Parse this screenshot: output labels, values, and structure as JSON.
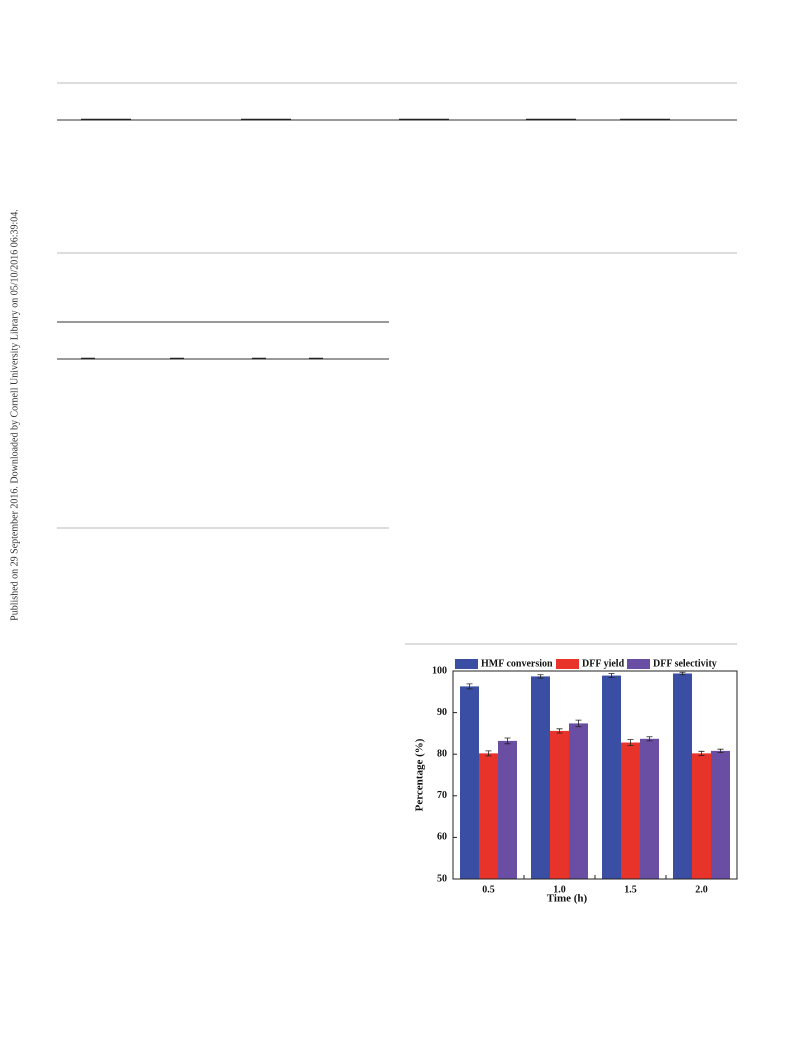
{
  "side_note": "Published on 29 September 2016. Downloaded by Cornell University Library on 05/10/2016 06:39:04.",
  "chart_data": {
    "type": "bar",
    "xlabel": "Time (h)",
    "ylabel": "Percentage  (%)",
    "categories": [
      "0.5",
      "1.0",
      "1.5",
      "2.0"
    ],
    "series": [
      {
        "name": "HMF conversion",
        "color": "#3a4fa3",
        "values": [
          96.3,
          98.7,
          98.9,
          99.4
        ],
        "errors": [
          0.6,
          0.4,
          0.5,
          0.3
        ]
      },
      {
        "name": "DFF yield",
        "color": "#e8332b",
        "values": [
          80.2,
          85.6,
          82.8,
          80.2
        ],
        "errors": [
          0.6,
          0.5,
          0.7,
          0.5
        ]
      },
      {
        "name": "DFF selectivity",
        "color": "#6a4ea3",
        "values": [
          83.2,
          87.4,
          83.7,
          80.8
        ],
        "errors": [
          0.7,
          0.8,
          0.5,
          0.4
        ]
      }
    ],
    "ylim": [
      50,
      100
    ],
    "yticks": [
      50,
      60,
      70,
      80,
      90,
      100
    ]
  }
}
